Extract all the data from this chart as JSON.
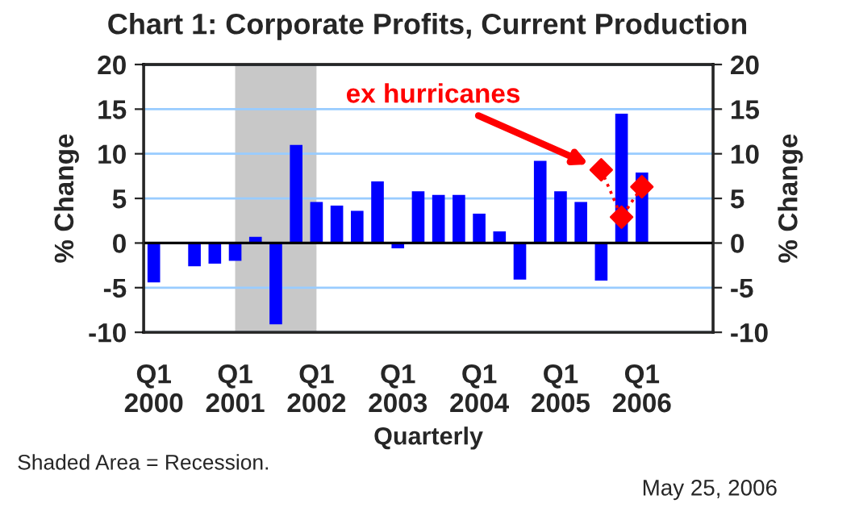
{
  "chart_data": {
    "type": "bar",
    "title": "Chart 1: Corporate Profits, Current Production",
    "xlabel": "Quarterly",
    "ylabel": "% Change",
    "y2label": "% Change",
    "categories": [
      "Q1\n2000",
      null,
      null,
      null,
      "Q1\n2001",
      null,
      null,
      null,
      "Q1\n2002",
      null,
      null,
      null,
      "Q1\n2003",
      null,
      null,
      null,
      "Q1\n2004",
      null,
      null,
      null,
      "Q1\n2005",
      null,
      null,
      null,
      "Q1\n2006",
      null,
      null,
      null
    ],
    "series": [
      {
        "color": "#0000ff",
        "values": [
          -4.4,
          null,
          -2.6,
          -2.3,
          -2.0,
          0.7,
          -9.1,
          11.0,
          4.6,
          4.2,
          3.6,
          6.9,
          -0.6,
          5.8,
          5.4,
          5.4,
          3.3,
          1.3,
          -4.1,
          9.2,
          5.8,
          4.6,
          -4.2,
          14.5,
          7.9,
          null,
          null,
          null
        ]
      },
      {
        "type": "line",
        "color": "#ff0000",
        "marker": "diamond",
        "line_style": "dotted",
        "values": [
          null,
          null,
          null,
          null,
          null,
          null,
          null,
          null,
          null,
          null,
          null,
          null,
          null,
          null,
          null,
          null,
          null,
          null,
          null,
          null,
          null,
          null,
          8.2,
          2.9,
          6.3,
          null,
          null,
          null
        ]
      }
    ],
    "ylim": [
      -10,
      20
    ],
    "yticks": [
      -10,
      -5,
      0,
      5,
      10,
      15,
      20
    ],
    "y2lim": [
      -10,
      20
    ],
    "y2ticks": [
      -10,
      -5,
      0,
      5,
      10,
      15,
      20
    ],
    "grid": "y",
    "bands": [
      {
        "axis": "x",
        "from": "Q1\n2001",
        "to": "Q1\n2002",
        "color": "#c8c8c8"
      }
    ],
    "ref_lines": [
      {
        "axis": "y",
        "value": 0,
        "color": "#000000"
      }
    ],
    "annotations": [
      "ex hurricanes",
      "Shaded Area = Recession.",
      "May 25, 2006"
    ]
  }
}
